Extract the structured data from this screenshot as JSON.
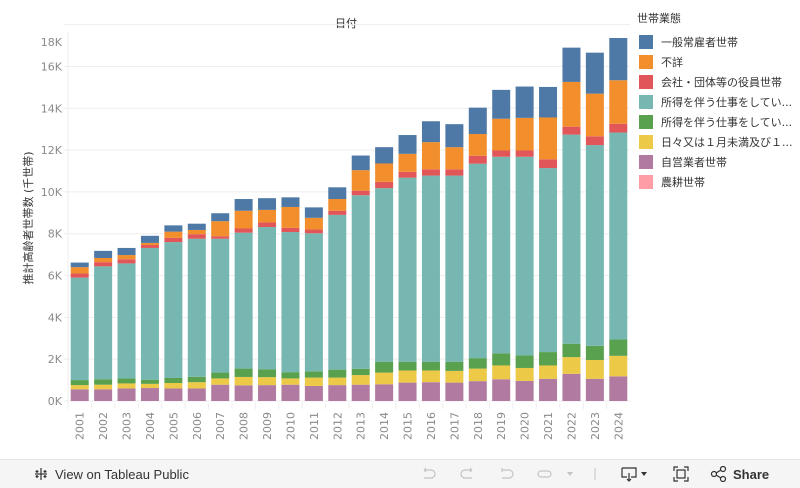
{
  "chart_data": {
    "type": "bar",
    "stacked": true,
    "title": "日付",
    "xlabel": "",
    "ylabel": "推計高齢者世帯数 (千世帯)",
    "ylim": [
      0,
      18000
    ],
    "yticks": [
      0,
      2000,
      4000,
      6000,
      8000,
      10000,
      12000,
      14000,
      16000,
      18000
    ],
    "ytick_labels": [
      "0K",
      "2K",
      "4K",
      "6K",
      "8K",
      "10K",
      "12K",
      "14K",
      "16K",
      "18K"
    ],
    "grid": true,
    "legend_position": "right",
    "legend_title": "世帯業態",
    "categories": [
      "2001",
      "2002",
      "2003",
      "2004",
      "2005",
      "2006",
      "2007",
      "2008",
      "2009",
      "2010",
      "2011",
      "2012",
      "2013",
      "2014",
      "2015",
      "2016",
      "2017",
      "2018",
      "2019",
      "2020",
      "2021",
      "2022",
      "2023",
      "2024"
    ],
    "series": [
      {
        "name": "自営業者世帯",
        "color": "#b07aa1",
        "values": [
          560,
          560,
          600,
          620,
          600,
          600,
          780,
          750,
          760,
          780,
          720,
          760,
          780,
          800,
          880,
          900,
          880,
          950,
          1040,
          960,
          1060,
          1300,
          1060,
          1180
        ]
      },
      {
        "name": "日々又は１月未満及び１...",
        "color": "#edc948",
        "values": [
          200,
          220,
          240,
          200,
          260,
          300,
          300,
          400,
          380,
          300,
          400,
          360,
          460,
          560,
          580,
          560,
          560,
          600,
          660,
          620,
          640,
          800,
          900,
          980
        ]
      },
      {
        "name": "所得を伴う仕事をしてい...(2)",
        "color": "#59a14f",
        "values": [
          240,
          260,
          240,
          200,
          240,
          260,
          280,
          400,
          380,
          300,
          300,
          380,
          300,
          520,
          420,
          420,
          440,
          500,
          580,
          600,
          640,
          640,
          680,
          780
        ]
      },
      {
        "name": "所得を伴う仕事をしてい...(1)",
        "color": "#76b7b2",
        "values": [
          4900,
          5400,
          5500,
          6300,
          6500,
          6600,
          6400,
          6500,
          6800,
          6700,
          6600,
          7400,
          8300,
          8300,
          8800,
          8900,
          8900,
          9300,
          9400,
          9500,
          8800,
          10000,
          9600,
          9900
        ]
      },
      {
        "name": "会社・団体等の役員世帯",
        "color": "#e15759",
        "values": [
          200,
          200,
          200,
          140,
          200,
          220,
          120,
          200,
          220,
          200,
          180,
          200,
          220,
          300,
          280,
          300,
          300,
          380,
          300,
          300,
          420,
          380,
          420,
          420
        ]
      },
      {
        "name": "不詳",
        "color": "#f28e2b",
        "values": [
          300,
          200,
          200,
          100,
          300,
          200,
          720,
          850,
          600,
          1000,
          560,
          560,
          980,
          880,
          860,
          1300,
          1060,
          1040,
          1520,
          1560,
          2000,
          2140,
          2040,
          2080
        ]
      },
      {
        "name": "一般常雇者世帯",
        "color": "#4e79a7",
        "values": [
          220,
          340,
          340,
          340,
          300,
          300,
          380,
          560,
          560,
          460,
          500,
          560,
          700,
          780,
          900,
          1000,
          1100,
          1260,
          1380,
          1500,
          1460,
          1640,
          1960,
          2020
        ]
      },
      {
        "name": "農耕世帯",
        "color": "#ff9da7",
        "values": [
          0,
          0,
          0,
          0,
          0,
          0,
          0,
          0,
          0,
          0,
          0,
          0,
          0,
          0,
          0,
          0,
          0,
          0,
          0,
          0,
          0,
          0,
          0,
          0
        ]
      }
    ]
  },
  "legend": {
    "title": "世帯業態",
    "items": [
      {
        "label": "一般常雇者世帯",
        "color": "#4e79a7"
      },
      {
        "label": "不詳",
        "color": "#f28e2b"
      },
      {
        "label": "会社・団体等の役員世帯",
        "color": "#e15759"
      },
      {
        "label": "所得を伴う仕事をしてい...",
        "color": "#76b7b2"
      },
      {
        "label": "所得を伴う仕事をしてい...",
        "color": "#59a14f"
      },
      {
        "label": "日々又は１月未満及び１...",
        "color": "#edc948"
      },
      {
        "label": "自営業者世帯",
        "color": "#b07aa1"
      },
      {
        "label": "農耕世帯",
        "color": "#ff9da7"
      }
    ]
  },
  "toolbar": {
    "view_label": "View on Tableau Public",
    "share_label": "Share"
  }
}
